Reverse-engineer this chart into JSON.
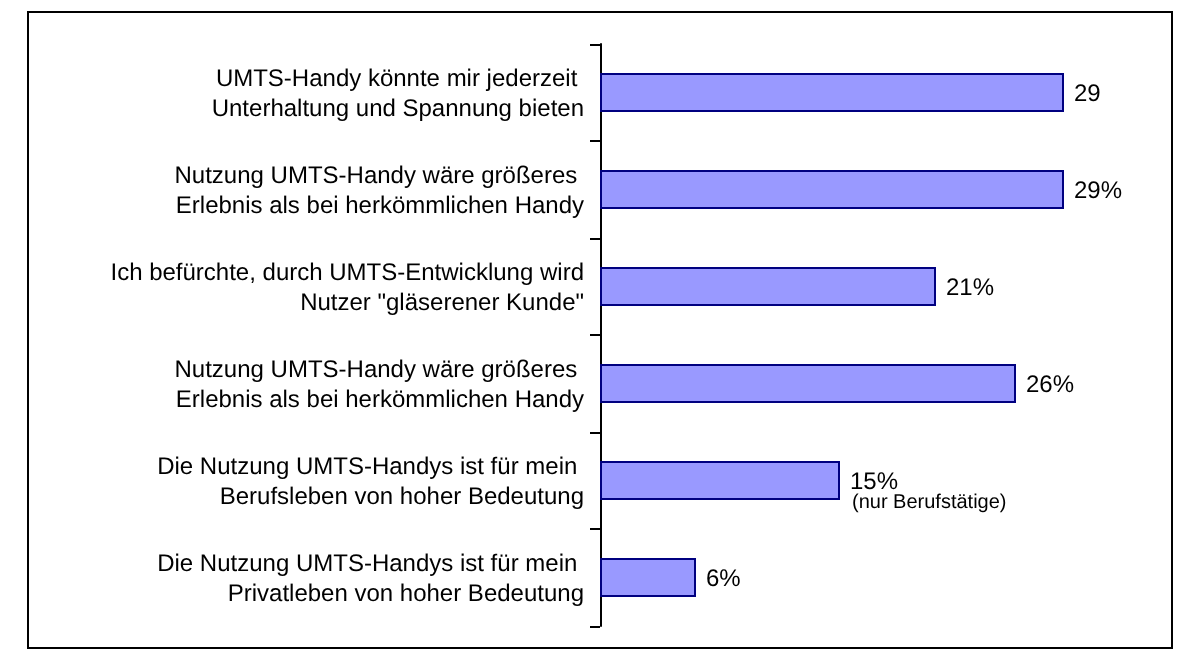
{
  "chart_data": {
    "type": "bar",
    "orientation": "horizontal",
    "categories": [
      "UMTS-Handy könnte mir jederzeit Unterhaltung und Spannung bieten",
      "Nutzung UMTS-Handy wäre größeres Erlebnis als bei herkömmlichen Handy",
      "Ich befürchte, durch UMTS-Entwicklung wird Nutzer \"gläserener Kunde\"",
      "Nutzung UMTS-Handy wäre größeres Erlebnis als bei herkömmlichen Handy",
      "Die Nutzung UMTS-Handys ist für mein Berufsleben von hoher Bedeutung",
      "Die Nutzung UMTS-Handys ist für mein Privatleben von hoher Bedeutung"
    ],
    "values": [
      29,
      29,
      21,
      26,
      15,
      6
    ],
    "value_labels": [
      "29",
      "29%",
      "21%",
      "26%",
      "15%",
      "6%"
    ],
    "color": "#9999ff",
    "annotations": [
      {
        "text": "(nur Berufstätige)",
        "x": 15,
        "y": "Die Nutzung UMTS-Handys ist für mein Berufsleben von hoher Bedeutung"
      }
    ],
    "tick_labels": "y"
  }
}
